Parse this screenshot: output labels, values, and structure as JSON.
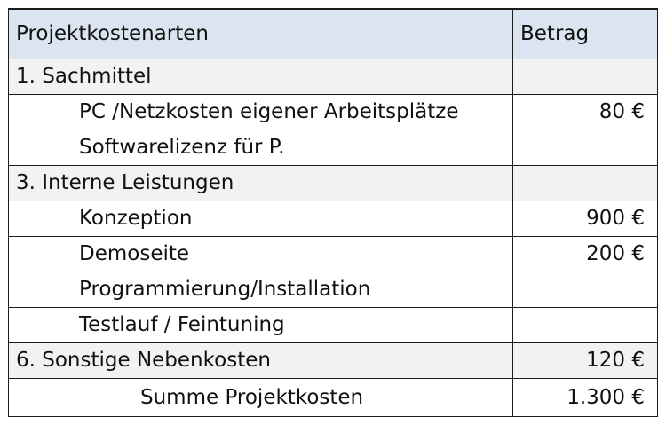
{
  "table": {
    "header": {
      "col_type": "Projektkostenarten",
      "col_amount": "Betrag"
    },
    "rows": [
      {
        "kind": "section",
        "label": "1. Sachmittel",
        "amount": ""
      },
      {
        "kind": "item",
        "label": "PC /Netzkosten eigener Arbeitsplätze",
        "amount": "80 €"
      },
      {
        "kind": "item",
        "label": "Softwarelizenz für P.",
        "amount": ""
      },
      {
        "kind": "section",
        "label": "3. Interne Leistungen",
        "amount": ""
      },
      {
        "kind": "item",
        "label": "Konzeption",
        "amount": "900 €"
      },
      {
        "kind": "item",
        "label": "Demoseite",
        "amount": "200 €"
      },
      {
        "kind": "item",
        "label": "Programmierung/Installation",
        "amount": ""
      },
      {
        "kind": "item",
        "label": "Testlauf / Feintuning",
        "amount": ""
      },
      {
        "kind": "section",
        "label": "6. Sonstige Nebenkosten",
        "amount": "120 €"
      }
    ],
    "total": {
      "label": "Summe Projektkosten",
      "amount": "1.300 €"
    }
  },
  "colors": {
    "header_bg": "#dbe5f1",
    "section_bg": "#f2f2f2",
    "border": "#1a1a1a"
  }
}
